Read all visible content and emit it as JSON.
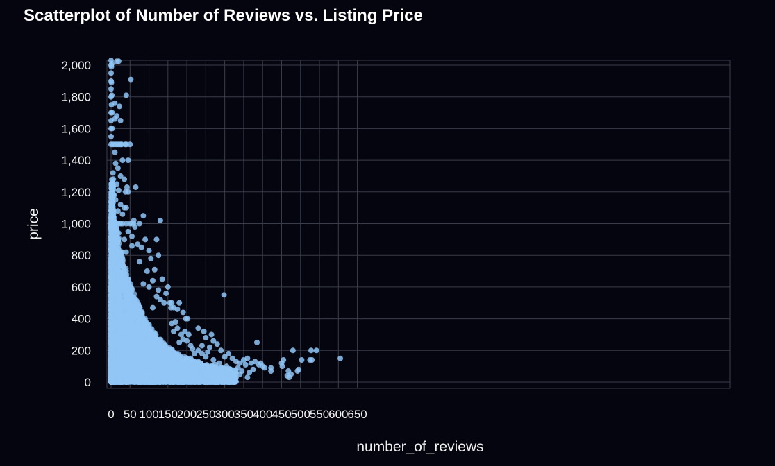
{
  "chart_data": {
    "type": "scatter",
    "title": "Scatterplot of Number of Reviews vs. Listing Price",
    "xlabel": "number_of_reviews",
    "ylabel": "price",
    "xlim": [
      -5,
      650
    ],
    "ylim": [
      -30,
      2020
    ],
    "x_ticks": [
      0,
      50,
      100,
      150,
      200,
      250,
      300,
      350,
      400,
      450,
      500,
      550,
      600,
      650
    ],
    "x_tick_labels": [
      "0",
      "50",
      "100",
      "150",
      "200",
      "250",
      "300",
      "350",
      "400",
      "450",
      "500",
      "550",
      "600",
      "650"
    ],
    "y_ticks": [
      0,
      200,
      400,
      600,
      800,
      1000,
      1200,
      1400,
      1600,
      1800,
      2000
    ],
    "y_tick_labels": [
      "0",
      "200",
      "400",
      "600",
      "800",
      "1,000",
      "1,200",
      "1,400",
      "1,600",
      "1,800",
      "2,000"
    ],
    "grid": true,
    "point_color": "#91c6f5",
    "background_color": "#05050f",
    "grid_color": "#3a3d4a",
    "series": [
      {
        "points": [
          [
            0,
            2030
          ],
          [
            0,
            2000
          ],
          [
            0,
            1950
          ],
          [
            0,
            1900
          ],
          [
            0,
            1850
          ],
          [
            0,
            1800
          ],
          [
            0,
            1700
          ],
          [
            0,
            1650
          ],
          [
            0,
            1600
          ],
          [
            0,
            1550
          ],
          [
            0,
            1500
          ],
          [
            1,
            1990
          ],
          [
            1,
            1890
          ],
          [
            1,
            1750
          ],
          [
            2,
            2010
          ],
          [
            2,
            1810
          ],
          [
            3,
            1700
          ],
          [
            3,
            1600
          ],
          [
            15,
            2025
          ],
          [
            20,
            2025
          ],
          [
            52,
            1910
          ],
          [
            40,
            1810
          ],
          [
            10,
            1760
          ],
          [
            22,
            1740
          ],
          [
            15,
            1680
          ],
          [
            10,
            1660
          ],
          [
            25,
            1650
          ],
          [
            5,
            1500
          ],
          [
            10,
            1500
          ],
          [
            15,
            1500
          ],
          [
            20,
            1500
          ],
          [
            25,
            1500
          ],
          [
            28,
            1500
          ],
          [
            38,
            1500
          ],
          [
            40,
            1500
          ],
          [
            50,
            1500
          ],
          [
            10,
            1450
          ],
          [
            30,
            1400
          ],
          [
            45,
            1400
          ],
          [
            12,
            1380
          ],
          [
            18,
            1350
          ],
          [
            5,
            1320
          ],
          [
            25,
            1300
          ],
          [
            35,
            1280
          ],
          [
            15,
            1250
          ],
          [
            42,
            1230
          ],
          [
            65,
            1230
          ],
          [
            20,
            1210
          ],
          [
            38,
            1200
          ],
          [
            45,
            1200
          ],
          [
            8,
            1180
          ],
          [
            12,
            1150
          ],
          [
            25,
            1120
          ],
          [
            35,
            1100
          ],
          [
            40,
            1100
          ],
          [
            18,
            1080
          ],
          [
            30,
            1060
          ],
          [
            85,
            1050
          ],
          [
            60,
            1020
          ],
          [
            130,
            1020
          ],
          [
            5,
            1000
          ],
          [
            10,
            1000
          ],
          [
            15,
            1000
          ],
          [
            20,
            1000
          ],
          [
            25,
            1000
          ],
          [
            30,
            1000
          ],
          [
            40,
            1000
          ],
          [
            50,
            1000
          ],
          [
            55,
            1000
          ],
          [
            60,
            1000
          ],
          [
            75,
            1000
          ],
          [
            63,
            980
          ],
          [
            45,
            950
          ],
          [
            20,
            940
          ],
          [
            55,
            920
          ],
          [
            35,
            900
          ],
          [
            90,
            900
          ],
          [
            120,
            900
          ],
          [
            70,
            870
          ],
          [
            55,
            860
          ],
          [
            80,
            850
          ],
          [
            100,
            830
          ],
          [
            40,
            820
          ],
          [
            105,
            780
          ],
          [
            125,
            800
          ],
          [
            75,
            760
          ],
          [
            115,
            710
          ],
          [
            95,
            700
          ],
          [
            135,
            650
          ],
          [
            110,
            640
          ],
          [
            85,
            620
          ],
          [
            100,
            600
          ],
          [
            150,
            600
          ],
          [
            125,
            580
          ],
          [
            145,
            560
          ],
          [
            120,
            540
          ],
          [
            130,
            520
          ],
          [
            140,
            500
          ],
          [
            155,
            500
          ],
          [
            160,
            500
          ],
          [
            180,
            500
          ],
          [
            158,
            470
          ],
          [
            165,
            470
          ],
          [
            175,
            460
          ],
          [
            110,
            470
          ],
          [
            190,
            440
          ],
          [
            197,
            400
          ],
          [
            202,
            400
          ],
          [
            298,
            550
          ],
          [
            385,
            250
          ],
          [
            230,
            340
          ],
          [
            245,
            320
          ],
          [
            265,
            300
          ],
          [
            250,
            280
          ],
          [
            270,
            260
          ],
          [
            280,
            240
          ],
          [
            240,
            230
          ],
          [
            260,
            220
          ],
          [
            290,
            200
          ],
          [
            230,
            200
          ],
          [
            240,
            180
          ],
          [
            300,
            160
          ],
          [
            310,
            180
          ],
          [
            320,
            150
          ],
          [
            330,
            130
          ],
          [
            340,
            120
          ],
          [
            350,
            140
          ],
          [
            360,
            150
          ],
          [
            370,
            120
          ],
          [
            380,
            130
          ],
          [
            390,
            110
          ],
          [
            400,
            100
          ],
          [
            305,
            100
          ],
          [
            315,
            80
          ],
          [
            325,
            60
          ],
          [
            335,
            90
          ],
          [
            345,
            70
          ],
          [
            355,
            110
          ],
          [
            365,
            60
          ],
          [
            375,
            80
          ],
          [
            395,
            120
          ],
          [
            405,
            90
          ],
          [
            422,
            70
          ],
          [
            422,
            90
          ],
          [
            450,
            120
          ],
          [
            452,
            100
          ],
          [
            455,
            140
          ],
          [
            465,
            40
          ],
          [
            468,
            70
          ],
          [
            470,
            30
          ],
          [
            475,
            50
          ],
          [
            480,
            200
          ],
          [
            492,
            70
          ],
          [
            495,
            80
          ],
          [
            503,
            140
          ],
          [
            525,
            140
          ],
          [
            528,
            200
          ],
          [
            530,
            140
          ],
          [
            542,
            200
          ],
          [
            605,
            150
          ],
          [
            200,
            50
          ],
          [
            210,
            70
          ],
          [
            215,
            120
          ],
          [
            225,
            90
          ],
          [
            235,
            60
          ],
          [
            245,
            40
          ],
          [
            255,
            100
          ],
          [
            265,
            80
          ],
          [
            275,
            50
          ],
          [
            285,
            30
          ],
          [
            295,
            70
          ],
          [
            210,
            150
          ],
          [
            220,
            180
          ],
          [
            230,
            130
          ],
          [
            250,
            160
          ],
          [
            255,
            190
          ],
          [
            270,
            140
          ],
          [
            275,
            110
          ],
          [
            285,
            120
          ],
          [
            290,
            90
          ],
          [
            260,
            30
          ],
          [
            310,
            40
          ],
          [
            330,
            30
          ],
          [
            340,
            50
          ],
          [
            360,
            30
          ],
          [
            170,
            380
          ],
          [
            175,
            340
          ],
          [
            185,
            300
          ],
          [
            190,
            270
          ],
          [
            195,
            320
          ],
          [
            200,
            260
          ],
          [
            205,
            300
          ],
          [
            210,
            230
          ],
          [
            215,
            210
          ],
          [
            180,
            250
          ],
          [
            165,
            320
          ],
          [
            160,
            370
          ]
        ]
      }
    ]
  }
}
